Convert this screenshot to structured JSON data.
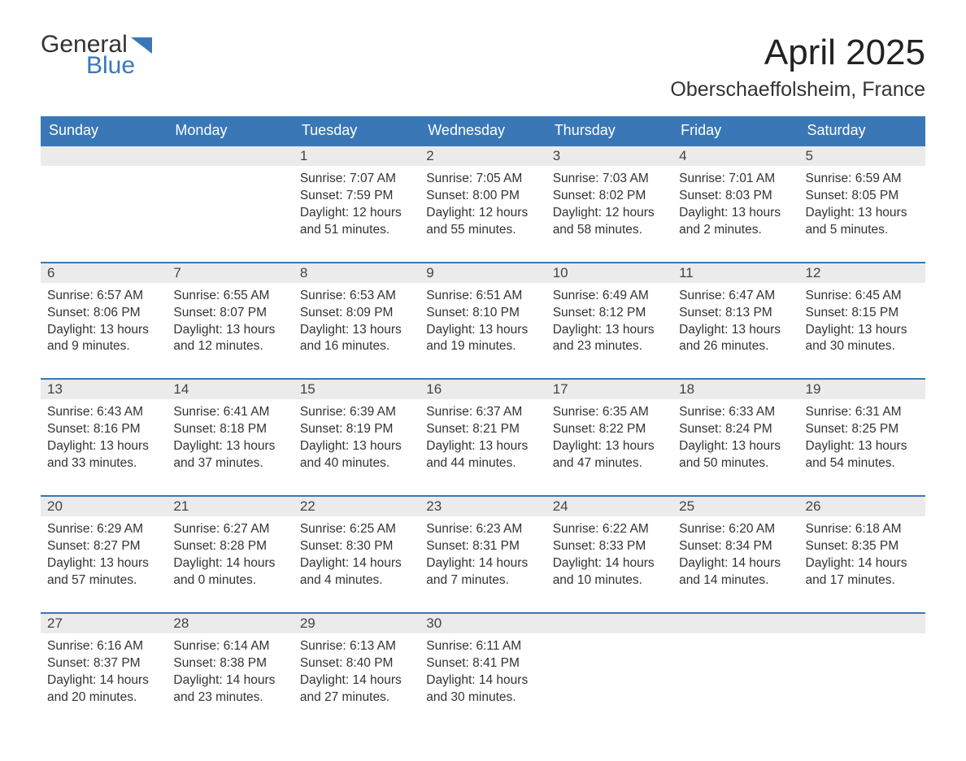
{
  "logo": {
    "general": "General",
    "blue": "Blue"
  },
  "title": "April 2025",
  "location": "Oberschaeffolsheim, France",
  "colors": {
    "header_bg": "#3a77b7",
    "header_text": "#ffffff",
    "daynum_bg": "#ebebeb",
    "row_border": "#3a77b7",
    "logo_blue": "#3a77b7",
    "body_text": "#333333",
    "page_bg": "#ffffff"
  },
  "typography": {
    "title_fontsize": 44,
    "location_fontsize": 25,
    "weekday_fontsize": 18,
    "daynum_fontsize": 17,
    "body_fontsize": 15.5,
    "logo_fontsize": 30
  },
  "weekdays": [
    "Sunday",
    "Monday",
    "Tuesday",
    "Wednesday",
    "Thursday",
    "Friday",
    "Saturday"
  ],
  "weeks": [
    [
      null,
      null,
      {
        "n": "1",
        "sunrise": "7:07 AM",
        "sunset": "7:59 PM",
        "dl1": "Daylight: 12 hours",
        "dl2": "and 51 minutes."
      },
      {
        "n": "2",
        "sunrise": "7:05 AM",
        "sunset": "8:00 PM",
        "dl1": "Daylight: 12 hours",
        "dl2": "and 55 minutes."
      },
      {
        "n": "3",
        "sunrise": "7:03 AM",
        "sunset": "8:02 PM",
        "dl1": "Daylight: 12 hours",
        "dl2": "and 58 minutes."
      },
      {
        "n": "4",
        "sunrise": "7:01 AM",
        "sunset": "8:03 PM",
        "dl1": "Daylight: 13 hours",
        "dl2": "and 2 minutes."
      },
      {
        "n": "5",
        "sunrise": "6:59 AM",
        "sunset": "8:05 PM",
        "dl1": "Daylight: 13 hours",
        "dl2": "and 5 minutes."
      }
    ],
    [
      {
        "n": "6",
        "sunrise": "6:57 AM",
        "sunset": "8:06 PM",
        "dl1": "Daylight: 13 hours",
        "dl2": "and 9 minutes."
      },
      {
        "n": "7",
        "sunrise": "6:55 AM",
        "sunset": "8:07 PM",
        "dl1": "Daylight: 13 hours",
        "dl2": "and 12 minutes."
      },
      {
        "n": "8",
        "sunrise": "6:53 AM",
        "sunset": "8:09 PM",
        "dl1": "Daylight: 13 hours",
        "dl2": "and 16 minutes."
      },
      {
        "n": "9",
        "sunrise": "6:51 AM",
        "sunset": "8:10 PM",
        "dl1": "Daylight: 13 hours",
        "dl2": "and 19 minutes."
      },
      {
        "n": "10",
        "sunrise": "6:49 AM",
        "sunset": "8:12 PM",
        "dl1": "Daylight: 13 hours",
        "dl2": "and 23 minutes."
      },
      {
        "n": "11",
        "sunrise": "6:47 AM",
        "sunset": "8:13 PM",
        "dl1": "Daylight: 13 hours",
        "dl2": "and 26 minutes."
      },
      {
        "n": "12",
        "sunrise": "6:45 AM",
        "sunset": "8:15 PM",
        "dl1": "Daylight: 13 hours",
        "dl2": "and 30 minutes."
      }
    ],
    [
      {
        "n": "13",
        "sunrise": "6:43 AM",
        "sunset": "8:16 PM",
        "dl1": "Daylight: 13 hours",
        "dl2": "and 33 minutes."
      },
      {
        "n": "14",
        "sunrise": "6:41 AM",
        "sunset": "8:18 PM",
        "dl1": "Daylight: 13 hours",
        "dl2": "and 37 minutes."
      },
      {
        "n": "15",
        "sunrise": "6:39 AM",
        "sunset": "8:19 PM",
        "dl1": "Daylight: 13 hours",
        "dl2": "and 40 minutes."
      },
      {
        "n": "16",
        "sunrise": "6:37 AM",
        "sunset": "8:21 PM",
        "dl1": "Daylight: 13 hours",
        "dl2": "and 44 minutes."
      },
      {
        "n": "17",
        "sunrise": "6:35 AM",
        "sunset": "8:22 PM",
        "dl1": "Daylight: 13 hours",
        "dl2": "and 47 minutes."
      },
      {
        "n": "18",
        "sunrise": "6:33 AM",
        "sunset": "8:24 PM",
        "dl1": "Daylight: 13 hours",
        "dl2": "and 50 minutes."
      },
      {
        "n": "19",
        "sunrise": "6:31 AM",
        "sunset": "8:25 PM",
        "dl1": "Daylight: 13 hours",
        "dl2": "and 54 minutes."
      }
    ],
    [
      {
        "n": "20",
        "sunrise": "6:29 AM",
        "sunset": "8:27 PM",
        "dl1": "Daylight: 13 hours",
        "dl2": "and 57 minutes."
      },
      {
        "n": "21",
        "sunrise": "6:27 AM",
        "sunset": "8:28 PM",
        "dl1": "Daylight: 14 hours",
        "dl2": "and 0 minutes."
      },
      {
        "n": "22",
        "sunrise": "6:25 AM",
        "sunset": "8:30 PM",
        "dl1": "Daylight: 14 hours",
        "dl2": "and 4 minutes."
      },
      {
        "n": "23",
        "sunrise": "6:23 AM",
        "sunset": "8:31 PM",
        "dl1": "Daylight: 14 hours",
        "dl2": "and 7 minutes."
      },
      {
        "n": "24",
        "sunrise": "6:22 AM",
        "sunset": "8:33 PM",
        "dl1": "Daylight: 14 hours",
        "dl2": "and 10 minutes."
      },
      {
        "n": "25",
        "sunrise": "6:20 AM",
        "sunset": "8:34 PM",
        "dl1": "Daylight: 14 hours",
        "dl2": "and 14 minutes."
      },
      {
        "n": "26",
        "sunrise": "6:18 AM",
        "sunset": "8:35 PM",
        "dl1": "Daylight: 14 hours",
        "dl2": "and 17 minutes."
      }
    ],
    [
      {
        "n": "27",
        "sunrise": "6:16 AM",
        "sunset": "8:37 PM",
        "dl1": "Daylight: 14 hours",
        "dl2": "and 20 minutes."
      },
      {
        "n": "28",
        "sunrise": "6:14 AM",
        "sunset": "8:38 PM",
        "dl1": "Daylight: 14 hours",
        "dl2": "and 23 minutes."
      },
      {
        "n": "29",
        "sunrise": "6:13 AM",
        "sunset": "8:40 PM",
        "dl1": "Daylight: 14 hours",
        "dl2": "and 27 minutes."
      },
      {
        "n": "30",
        "sunrise": "6:11 AM",
        "sunset": "8:41 PM",
        "dl1": "Daylight: 14 hours",
        "dl2": "and 30 minutes."
      },
      null,
      null,
      null
    ]
  ],
  "labels": {
    "sunrise_prefix": "Sunrise: ",
    "sunset_prefix": "Sunset: "
  }
}
